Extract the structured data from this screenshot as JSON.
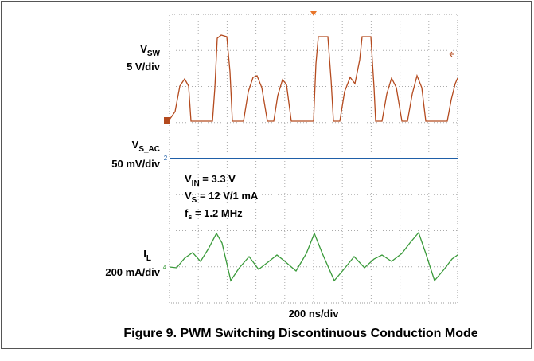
{
  "figure": {
    "channels": [
      {
        "name": {
          "main": "V",
          "sub": "SW"
        },
        "scale": "5 V/div"
      },
      {
        "name": {
          "main": "V",
          "sub": "S_AC"
        },
        "scale": "50 mV/div",
        "marker": "2"
      },
      {
        "name": {
          "main": "I",
          "sub": "L"
        },
        "scale": "200 mA/div",
        "marker": "4"
      }
    ],
    "conditions": [
      {
        "main": "V",
        "sub": "IN",
        "rest": " = 3.3 V"
      },
      {
        "main": "V",
        "sub": "S",
        "rest": " = 12 V/1 mA"
      },
      {
        "main": "f",
        "sub": "s",
        "rest": " = 1.2 MHz"
      }
    ],
    "timebase": "200 ns/div",
    "caption": "Figure 9. PWM Switching Discontinuous Conduction Mode"
  }
}
